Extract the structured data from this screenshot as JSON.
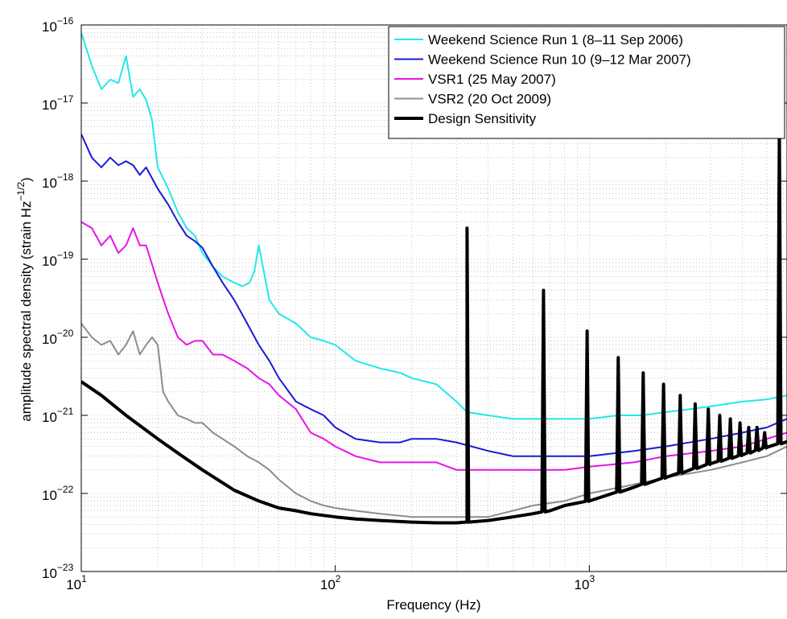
{
  "chart_data": {
    "type": "line",
    "title": "",
    "xlabel": "Frequency (Hz)",
    "ylabel": "amplitude spectral density (strain Hz",
    "ylabel_sup": "−1/2",
    "ylabel_tail": ")",
    "x_scale": "log",
    "y_scale": "log",
    "xlim": [
      10,
      6000
    ],
    "ylim": [
      1e-23,
      1e-16
    ],
    "grid": true,
    "legend_position": "top-right",
    "x_ticks": [
      {
        "value": 10,
        "base": "10",
        "exp": "1"
      },
      {
        "value": 100,
        "base": "10",
        "exp": "2"
      },
      {
        "value": 1000,
        "base": "10",
        "exp": "3"
      }
    ],
    "y_ticks": [
      {
        "value": 1e-23,
        "base": "10",
        "exp": "−23"
      },
      {
        "value": 1e-22,
        "base": "10",
        "exp": "−22"
      },
      {
        "value": 1e-21,
        "base": "10",
        "exp": "−21"
      },
      {
        "value": 1e-20,
        "base": "10",
        "exp": "−20"
      },
      {
        "value": 1e-19,
        "base": "10",
        "exp": "−19"
      },
      {
        "value": 1e-18,
        "base": "10",
        "exp": "−18"
      },
      {
        "value": 1e-17,
        "base": "10",
        "exp": "−17"
      },
      {
        "value": 1e-16,
        "base": "10",
        "exp": "−16"
      }
    ],
    "series": [
      {
        "name": "Weekend Science Run 1 (8–11 Sep 2006)",
        "color": "#22e8e8",
        "line_width": 2,
        "x": [
          10,
          11,
          12,
          13,
          14,
          15,
          16,
          17,
          18,
          19,
          20,
          22,
          24,
          26,
          28,
          30,
          33,
          36,
          40,
          43,
          46,
          48,
          50,
          55,
          60,
          70,
          80,
          90,
          100,
          120,
          150,
          180,
          200,
          250,
          300,
          330,
          400,
          500,
          600,
          700,
          800,
          1000,
          1300,
          1600,
          2000,
          2500,
          3000,
          4000,
          5000,
          6000
        ],
        "y": [
          8e-17,
          3e-17,
          1.5e-17,
          2e-17,
          1.8e-17,
          4e-17,
          1.2e-17,
          1.5e-17,
          1.1e-17,
          6e-18,
          1.5e-18,
          8e-19,
          4e-19,
          2.5e-19,
          2e-19,
          1.2e-19,
          8e-20,
          6e-20,
          5e-20,
          4.5e-20,
          5e-20,
          7e-20,
          1.5e-19,
          3e-20,
          2e-20,
          1.5e-20,
          1e-20,
          9e-21,
          8e-21,
          5e-21,
          4e-21,
          3.5e-21,
          3e-21,
          2.5e-21,
          1.5e-21,
          1.1e-21,
          1e-21,
          9e-22,
          9e-22,
          9e-22,
          9e-22,
          9e-22,
          1e-21,
          1e-21,
          1.1e-21,
          1.2e-21,
          1.3e-21,
          1.5e-21,
          1.6e-21,
          1.8e-21
        ]
      },
      {
        "name": "Weekend Science Run 10 (9–12 Mar 2007)",
        "color": "#1a1ad6",
        "line_width": 2,
        "x": [
          10,
          11,
          12,
          13,
          14,
          15,
          16,
          17,
          18,
          20,
          22,
          24,
          26,
          28,
          30,
          33,
          36,
          40,
          45,
          50,
          55,
          60,
          70,
          80,
          90,
          100,
          120,
          150,
          180,
          200,
          250,
          300,
          400,
          500,
          600,
          800,
          1000,
          1500,
          2000,
          3000,
          4000,
          5000,
          6000
        ],
        "y": [
          4e-18,
          2e-18,
          1.5e-18,
          2e-18,
          1.6e-18,
          1.8e-18,
          1.6e-18,
          1.2e-18,
          1.5e-18,
          8e-19,
          5e-19,
          3e-19,
          2e-19,
          1.7e-19,
          1.4e-19,
          8e-20,
          5e-20,
          3e-20,
          1.5e-20,
          8e-21,
          5e-21,
          3e-21,
          1.5e-21,
          1.2e-21,
          1e-21,
          7e-22,
          5e-22,
          4.5e-22,
          4.5e-22,
          5e-22,
          5e-22,
          4.5e-22,
          3.5e-22,
          3e-22,
          3e-22,
          3e-22,
          3e-22,
          3.5e-22,
          4e-22,
          5e-22,
          6e-22,
          7e-22,
          9e-22
        ]
      },
      {
        "name": "VSR1 (25 May 2007)",
        "color": "#e614e6",
        "line_width": 2,
        "x": [
          10,
          11,
          12,
          13,
          14,
          15,
          16,
          17,
          18,
          20,
          22,
          24,
          26,
          28,
          30,
          33,
          36,
          40,
          45,
          50,
          55,
          60,
          70,
          80,
          90,
          100,
          120,
          150,
          180,
          200,
          250,
          300,
          400,
          500,
          600,
          800,
          1000,
          1500,
          2000,
          3000,
          4000,
          5000,
          6000
        ],
        "y": [
          3e-19,
          2.5e-19,
          1.5e-19,
          2e-19,
          1.2e-19,
          1.5e-19,
          2.5e-19,
          1.5e-19,
          1.5e-19,
          5e-20,
          2e-20,
          1e-20,
          8e-21,
          9e-21,
          9e-21,
          6e-21,
          6e-21,
          5e-21,
          4e-21,
          3e-21,
          2.5e-21,
          1.8e-21,
          1.2e-21,
          6e-22,
          5e-22,
          4e-22,
          3e-22,
          2.5e-22,
          2.5e-22,
          2.5e-22,
          2.5e-22,
          2e-22,
          2e-22,
          2e-22,
          2e-22,
          2e-22,
          2.2e-22,
          2.5e-22,
          3e-22,
          3.5e-22,
          4e-22,
          5e-22,
          6e-22
        ]
      },
      {
        "name": "VSR2 (20 Oct 2009)",
        "color": "#8c8c8c",
        "line_width": 2,
        "x": [
          10,
          11,
          12,
          13,
          14,
          15,
          16,
          17,
          18,
          19,
          20,
          21,
          22,
          24,
          26,
          28,
          30,
          33,
          36,
          40,
          45,
          50,
          55,
          60,
          70,
          80,
          90,
          100,
          120,
          150,
          200,
          250,
          300,
          400,
          500,
          600,
          800,
          1000,
          1500,
          2000,
          3000,
          4000,
          5000,
          6000
        ],
        "y": [
          1.5e-20,
          1e-20,
          8e-21,
          9e-21,
          6e-21,
          8e-21,
          1.2e-20,
          6e-21,
          8e-21,
          1e-20,
          8e-21,
          2e-21,
          1.5e-21,
          1e-21,
          9e-22,
          8e-22,
          8e-22,
          6e-22,
          5e-22,
          4e-22,
          3e-22,
          2.5e-22,
          2e-22,
          1.5e-22,
          1e-22,
          8e-23,
          7e-23,
          6.5e-23,
          6e-23,
          5.5e-23,
          5e-23,
          5e-23,
          5e-23,
          5e-23,
          6e-23,
          7e-23,
          8e-23,
          1e-22,
          1.3e-22,
          1.6e-22,
          2e-22,
          2.5e-22,
          3e-22,
          4e-22
        ]
      },
      {
        "name": "Design Sensitivity",
        "color": "#000000",
        "line_width": 4,
        "x": [
          10,
          12,
          15,
          20,
          25,
          30,
          40,
          50,
          60,
          70,
          80,
          100,
          120,
          150,
          200,
          250,
          300,
          330,
          400,
          500,
          600,
          700,
          800,
          1000,
          1500,
          2000,
          3000,
          4000,
          5000,
          6000
        ],
        "y": [
          2.7e-21,
          1.8e-21,
          1e-21,
          5e-22,
          3e-22,
          2e-22,
          1.1e-22,
          8e-23,
          6.5e-23,
          6e-23,
          5.5e-23,
          5e-23,
          4.7e-23,
          4.5e-23,
          4.3e-23,
          4.2e-23,
          4.2e-23,
          4.3e-23,
          4.5e-23,
          5e-23,
          5.5e-23,
          6e-23,
          7e-23,
          8e-23,
          1.2e-22,
          1.6e-22,
          2.4e-22,
          3.1e-22,
          3.9e-22,
          4.6e-22
        ],
        "resonance_peaks": [
          {
            "x": 330,
            "y": 2.5e-19
          },
          {
            "x": 660,
            "y": 4e-20
          },
          {
            "x": 980,
            "y": 1.2e-20
          },
          {
            "x": 1300,
            "y": 5.5e-21
          },
          {
            "x": 1630,
            "y": 3.5e-21
          },
          {
            "x": 1960,
            "y": 2.5e-21
          },
          {
            "x": 2280,
            "y": 1.8e-21
          },
          {
            "x": 2610,
            "y": 1.4e-21
          },
          {
            "x": 2940,
            "y": 1.2e-21
          },
          {
            "x": 3260,
            "y": 1e-21
          },
          {
            "x": 3590,
            "y": 9e-22
          },
          {
            "x": 3920,
            "y": 8e-22
          },
          {
            "x": 4240,
            "y": 7e-22
          },
          {
            "x": 4570,
            "y": 7e-22
          },
          {
            "x": 4900,
            "y": 6e-22
          },
          {
            "x": 5600,
            "y": 5e-18
          }
        ]
      }
    ]
  }
}
